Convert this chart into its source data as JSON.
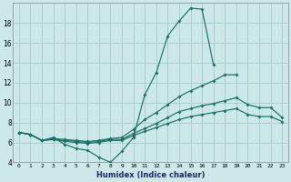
{
  "xlabel": "Humidex (Indice chaleur)",
  "background_color": "#cce8e8",
  "grid_color": "#aacece",
  "line_color": "#1a7068",
  "xlim": [
    -0.5,
    23.5
  ],
  "ylim": [
    4,
    20
  ],
  "ytick_vals": [
    4,
    6,
    8,
    10,
    12,
    14,
    16,
    18
  ],
  "ytick_labels": [
    "4",
    "6",
    "8",
    "10",
    "12",
    "14",
    "16",
    "18"
  ],
  "xtick_vals": [
    0,
    1,
    2,
    3,
    4,
    5,
    6,
    7,
    8,
    9,
    10,
    11,
    12,
    13,
    14,
    15,
    16,
    17,
    18,
    19,
    20,
    21,
    22,
    23
  ],
  "series": [
    {
      "x": [
        0,
        1,
        2,
        3,
        4,
        5,
        6,
        7,
        8,
        9,
        10,
        11,
        12,
        13,
        14,
        15,
        16,
        17
      ],
      "y": [
        7.0,
        6.8,
        6.2,
        6.5,
        5.8,
        5.4,
        5.2,
        4.5,
        4.0,
        5.1,
        6.5,
        10.8,
        13.0,
        16.7,
        18.2,
        19.5,
        19.4,
        13.8
      ]
    },
    {
      "x": [
        0,
        1,
        2,
        3,
        4,
        5,
        6,
        7,
        8,
        9,
        10,
        11,
        12,
        13,
        14,
        15,
        16,
        17,
        18,
        19
      ],
      "y": [
        7.0,
        6.8,
        6.2,
        6.4,
        6.3,
        6.2,
        6.1,
        6.2,
        6.4,
        6.5,
        7.3,
        8.3,
        9.0,
        9.8,
        10.6,
        11.2,
        11.7,
        12.2,
        12.8,
        12.8
      ]
    },
    {
      "x": [
        0,
        1,
        2,
        3,
        4,
        5,
        6,
        7,
        8,
        9,
        10,
        11,
        12,
        13,
        14,
        15,
        16,
        17,
        18,
        19,
        20,
        21,
        22,
        23
      ],
      "y": [
        7.0,
        6.8,
        6.2,
        6.3,
        6.2,
        6.1,
        6.0,
        6.1,
        6.3,
        6.3,
        6.9,
        7.4,
        7.9,
        8.5,
        9.1,
        9.4,
        9.7,
        9.9,
        10.2,
        10.5,
        9.8,
        9.5,
        9.5,
        8.5
      ]
    },
    {
      "x": [
        0,
        1,
        2,
        3,
        4,
        5,
        6,
        7,
        8,
        9,
        10,
        11,
        12,
        13,
        14,
        15,
        16,
        17,
        18,
        19,
        20,
        21,
        22,
        23
      ],
      "y": [
        7.0,
        6.8,
        6.2,
        6.3,
        6.1,
        6.0,
        5.9,
        6.0,
        6.2,
        6.2,
        6.7,
        7.1,
        7.5,
        7.9,
        8.3,
        8.6,
        8.8,
        9.0,
        9.2,
        9.4,
        8.8,
        8.6,
        8.6,
        8.1
      ]
    }
  ]
}
